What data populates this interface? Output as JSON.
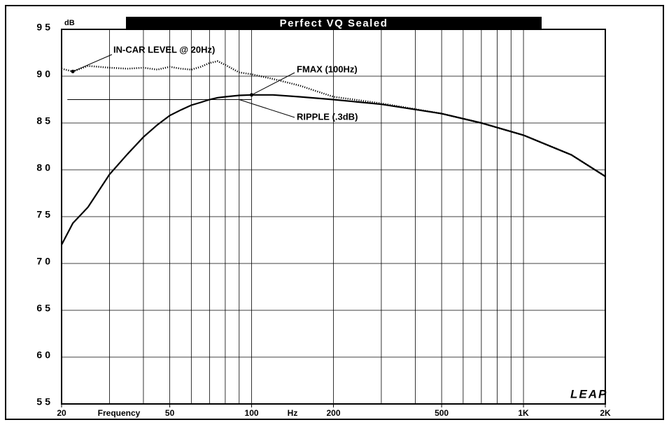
{
  "chart_data": {
    "type": "line",
    "title": "Perfect VQ Sealed",
    "ylabel": "dB",
    "xlabel": "Frequency",
    "xunit": "Hz",
    "logo": "LEAP",
    "log_x": true,
    "grid": true,
    "xlim": [
      20,
      2000
    ],
    "ylim": [
      55,
      95
    ],
    "xticks": [
      20,
      50,
      100,
      200,
      500,
      {
        "value": 1000,
        "label": "1K"
      },
      {
        "value": 2000,
        "label": "2K"
      }
    ],
    "yticks": [
      55,
      60,
      65,
      70,
      75,
      80,
      85,
      90,
      95
    ],
    "xgrid": [
      30,
      40,
      50,
      60,
      70,
      80,
      90,
      100,
      200,
      300,
      400,
      500,
      600,
      700,
      800,
      900,
      1000
    ],
    "x": [
      20,
      22,
      25,
      30,
      35,
      40,
      45,
      50,
      55,
      60,
      65,
      70,
      75,
      80,
      90,
      100,
      120,
      150,
      200,
      300,
      500,
      700,
      1000,
      1500,
      2000
    ],
    "series": [
      {
        "color": "#000000",
        "style": "solid",
        "values": [
          72.0,
          74.3,
          76.0,
          79.5,
          81.7,
          83.5,
          84.8,
          85.8,
          86.4,
          86.9,
          87.2,
          87.5,
          87.7,
          87.8,
          87.95,
          88.0,
          88.0,
          87.8,
          87.5,
          87.0,
          86.0,
          85.0,
          83.7,
          81.6,
          79.3
        ]
      },
      {
        "color": "#000000",
        "style": "dotted",
        "values": [
          90.8,
          90.5,
          91.1,
          90.9,
          90.8,
          90.9,
          90.7,
          91.0,
          90.8,
          90.7,
          91.0,
          91.4,
          91.6,
          91.2,
          90.4,
          90.2,
          89.7,
          89.0,
          87.8,
          87.1,
          86.0,
          85.0,
          83.7,
          81.6,
          79.3
        ]
      }
    ],
    "ripple_line": {
      "y": 87.5,
      "x": [
        21,
        100
      ]
    },
    "annotations": [
      {
        "text": "IN-CAR LEVEL @ 20Hz)",
        "x": 22,
        "y": 90.5
      },
      {
        "text": "FMAX (100Hz)",
        "x": 100,
        "y": 88.0
      },
      {
        "text": "RIPPLE (.3dB)",
        "x": 90,
        "y": 87.5
      }
    ]
  }
}
